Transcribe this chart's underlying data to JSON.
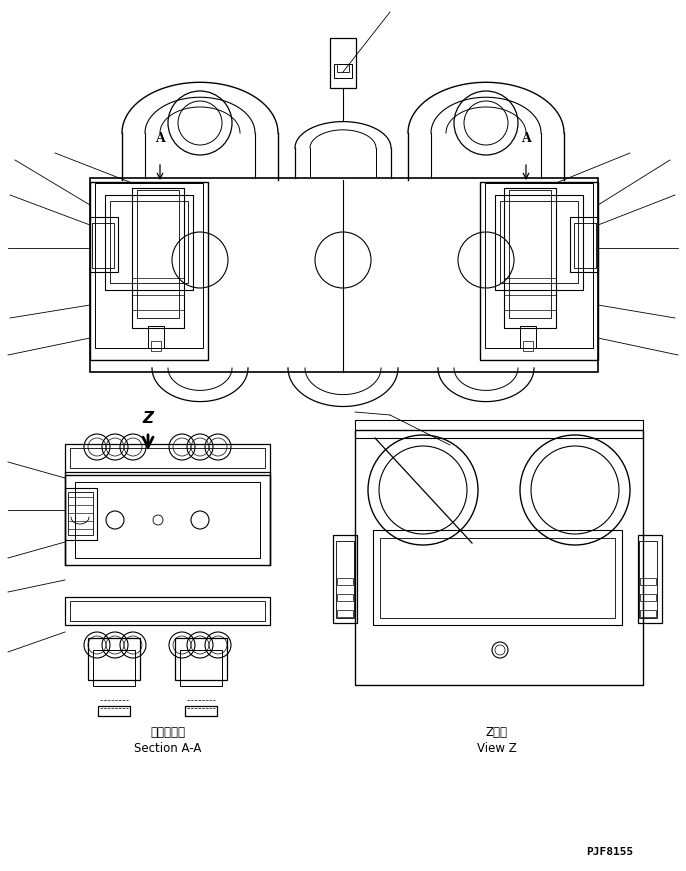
{
  "bg_color": "#ffffff",
  "line_color": "#000000",
  "fig_width": 6.86,
  "fig_height": 8.71,
  "part_number": "PJF8155",
  "label_section_aa_jp": "断面Ａ－Ａ",
  "label_section_aa_en": "Section A-A",
  "label_view_z_jp": "Z　視",
  "label_view_z_en": "View Z"
}
